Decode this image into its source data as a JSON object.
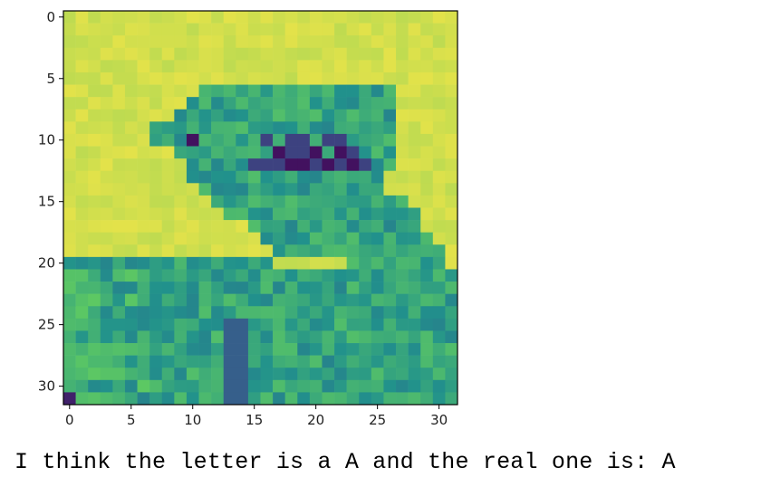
{
  "chart_data": {
    "type": "heatmap",
    "title": "",
    "xlabel": "",
    "ylabel": "",
    "xlim": [
      -0.5,
      31.5
    ],
    "ylim": [
      31.5,
      -0.5
    ],
    "x_ticks": [
      0,
      5,
      10,
      15,
      20,
      25,
      30
    ],
    "y_ticks": [
      0,
      5,
      10,
      15,
      20,
      25,
      30
    ],
    "colormap": "viridis",
    "grid": false,
    "image_size": [
      32,
      32
    ],
    "description_rows": [
      "yellow background top-left region, green hand silhouette, dark spots around row 10-12"
    ]
  },
  "caption": "I think the letter is a A and the real one is: A",
  "colors": {
    "background_yellow": "#e3e24a",
    "dark_purple": "#3b1f63",
    "axis": "#000000"
  }
}
